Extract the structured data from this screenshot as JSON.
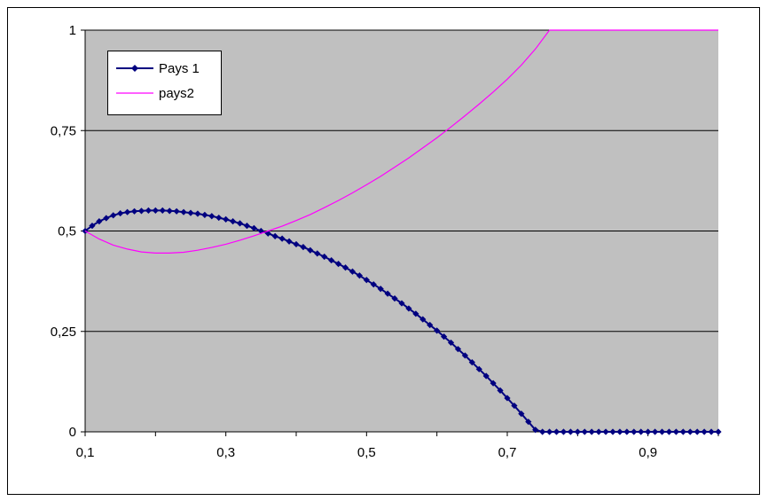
{
  "chart_data": {
    "type": "line",
    "title": "",
    "xlabel": "",
    "ylabel": "",
    "xlim": [
      0.1,
      1.0
    ],
    "ylim": [
      0,
      1
    ],
    "x_ticks": [
      "0,1",
      "0,3",
      "0,5",
      "0,7",
      "0,9"
    ],
    "x_tick_values": [
      0.1,
      0.3,
      0.5,
      0.7,
      0.9
    ],
    "y_ticks": [
      "0",
      "0,25",
      "0,5",
      "0,75",
      "1"
    ],
    "y_tick_values": [
      0,
      0.25,
      0.5,
      0.75,
      1
    ],
    "grid": "horizontal",
    "legend": "top-left",
    "plot_background": "#c0c0c0",
    "series": [
      {
        "name": "Pays 1",
        "color": "#000080",
        "marker": "diamond",
        "x": [
          0.1,
          0.11,
          0.12,
          0.13,
          0.14,
          0.15,
          0.16,
          0.17,
          0.18,
          0.19,
          0.2,
          0.21,
          0.22,
          0.23,
          0.24,
          0.25,
          0.26,
          0.27,
          0.28,
          0.29,
          0.3,
          0.31,
          0.32,
          0.33,
          0.34,
          0.35,
          0.36,
          0.37,
          0.38,
          0.39,
          0.4,
          0.41,
          0.42,
          0.43,
          0.44,
          0.45,
          0.46,
          0.47,
          0.48,
          0.49,
          0.5,
          0.51,
          0.52,
          0.53,
          0.54,
          0.55,
          0.56,
          0.57,
          0.58,
          0.59,
          0.6,
          0.61,
          0.62,
          0.63,
          0.64,
          0.65,
          0.66,
          0.67,
          0.68,
          0.69,
          0.7,
          0.71,
          0.72,
          0.73,
          0.74,
          0.75,
          0.76,
          0.77,
          0.78,
          0.79,
          0.8,
          0.81,
          0.82,
          0.83,
          0.84,
          0.85,
          0.86,
          0.87,
          0.88,
          0.89,
          0.9,
          0.91,
          0.92,
          0.93,
          0.94,
          0.95,
          0.96,
          0.97,
          0.98,
          0.99,
          1.0
        ],
        "y": [
          0.5,
          0.513,
          0.524,
          0.532,
          0.539,
          0.544,
          0.547,
          0.549,
          0.55,
          0.551,
          0.551,
          0.551,
          0.55,
          0.549,
          0.547,
          0.545,
          0.543,
          0.54,
          0.537,
          0.533,
          0.529,
          0.524,
          0.519,
          0.513,
          0.507,
          0.5,
          0.494,
          0.487,
          0.481,
          0.474,
          0.467,
          0.46,
          0.452,
          0.444,
          0.436,
          0.427,
          0.418,
          0.409,
          0.399,
          0.389,
          0.378,
          0.367,
          0.356,
          0.344,
          0.332,
          0.32,
          0.307,
          0.294,
          0.28,
          0.266,
          0.252,
          0.237,
          0.222,
          0.206,
          0.19,
          0.173,
          0.156,
          0.139,
          0.121,
          0.103,
          0.084,
          0.065,
          0.045,
          0.025,
          0.005,
          0.0,
          0.0,
          0.0,
          0.0,
          0.0,
          0.0,
          0.0,
          0.0,
          0.0,
          0.0,
          0.0,
          0.0,
          0.0,
          0.0,
          0.0,
          0.0,
          0.0,
          0.0,
          0.0,
          0.0,
          0.0,
          0.0,
          0.0,
          0.0,
          0.0,
          0.0
        ]
      },
      {
        "name": "pays2",
        "color": "#ff00ff",
        "marker": "none",
        "x": [
          0.1,
          0.12,
          0.14,
          0.16,
          0.18,
          0.2,
          0.22,
          0.24,
          0.26,
          0.28,
          0.3,
          0.32,
          0.34,
          0.36,
          0.38,
          0.4,
          0.42,
          0.44,
          0.46,
          0.48,
          0.5,
          0.52,
          0.54,
          0.56,
          0.58,
          0.6,
          0.62,
          0.64,
          0.66,
          0.68,
          0.7,
          0.72,
          0.74,
          0.76,
          0.78,
          0.8,
          0.82,
          0.84,
          0.86,
          0.88,
          0.9,
          0.92,
          0.94,
          0.96,
          0.98,
          1.0
        ],
        "y": [
          0.5,
          0.48,
          0.465,
          0.455,
          0.448,
          0.445,
          0.445,
          0.447,
          0.452,
          0.459,
          0.467,
          0.477,
          0.488,
          0.5,
          0.512,
          0.526,
          0.541,
          0.558,
          0.576,
          0.595,
          0.615,
          0.636,
          0.659,
          0.682,
          0.707,
          0.732,
          0.759,
          0.787,
          0.816,
          0.846,
          0.878,
          0.913,
          0.953,
          1.0,
          1.0,
          1.0,
          1.0,
          1.0,
          1.0,
          1.0,
          1.0,
          1.0,
          1.0,
          1.0,
          1.0,
          1.0
        ]
      }
    ]
  }
}
